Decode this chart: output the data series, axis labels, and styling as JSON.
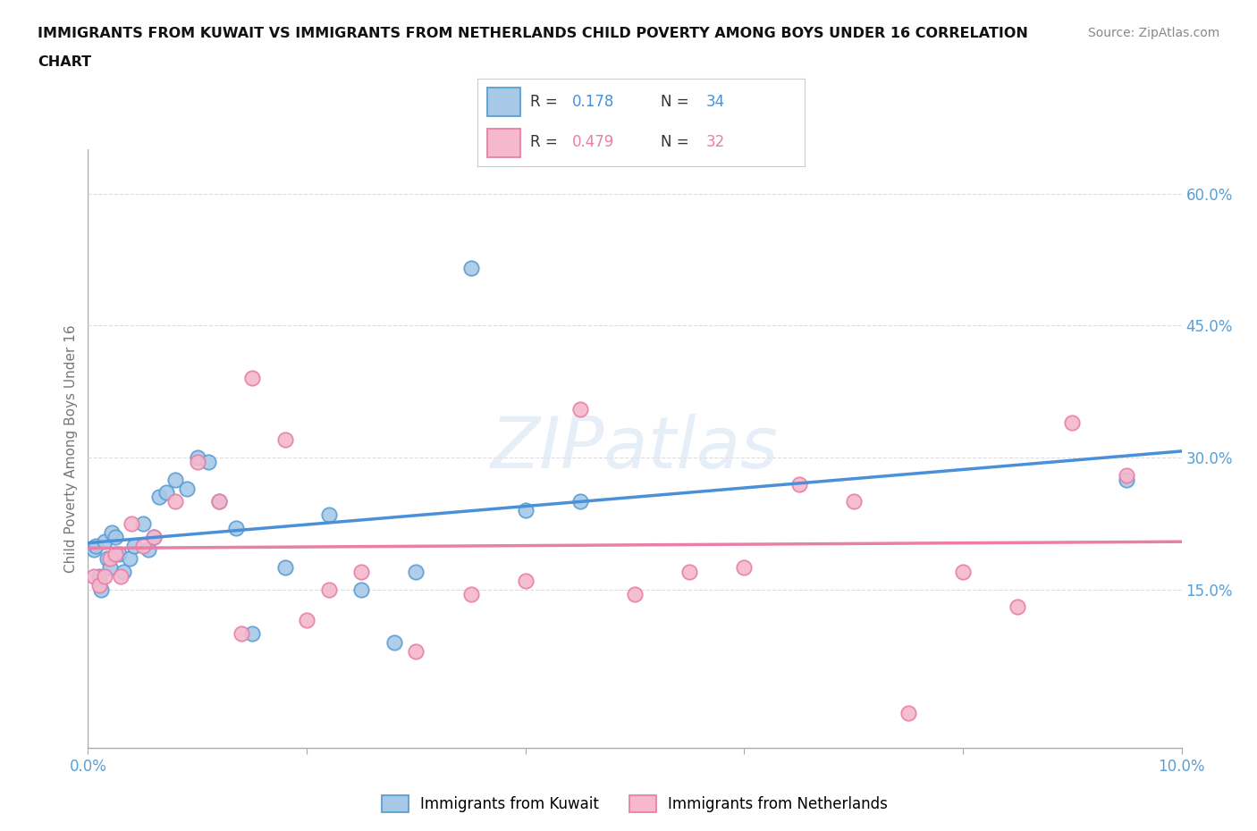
{
  "title_line1": "IMMIGRANTS FROM KUWAIT VS IMMIGRANTS FROM NETHERLANDS CHILD POVERTY AMONG BOYS UNDER 16 CORRELATION",
  "title_line2": "CHART",
  "source": "Source: ZipAtlas.com",
  "ylabel": "Child Poverty Among Boys Under 16",
  "xlim": [
    0.0,
    10.0
  ],
  "ylim": [
    -3.0,
    65.0
  ],
  "xticks": [
    0.0,
    2.0,
    4.0,
    6.0,
    8.0,
    10.0
  ],
  "xtick_labels": [
    "0.0%",
    "",
    "",
    "",
    "",
    "10.0%"
  ],
  "ytick_positions": [
    15.0,
    30.0,
    45.0,
    60.0
  ],
  "ytick_labels": [
    "15.0%",
    "30.0%",
    "45.0%",
    "60.0%"
  ],
  "kuwait_color": "#a8c8e8",
  "kuwait_edge": "#5a9fd4",
  "netherlands_color": "#f5b8cc",
  "netherlands_edge": "#e87fa8",
  "trend_blue": "#4a90d9",
  "trend_pink": "#e87fa8",
  "axis_color": "#5a9fd4",
  "background": "#ffffff",
  "watermark": "ZIPatlas",
  "legend_r1": "0.178",
  "legend_n1": "34",
  "legend_r2": "0.479",
  "legend_n2": "32",
  "kuwait_x": [
    0.05,
    0.07,
    0.1,
    0.12,
    0.15,
    0.18,
    0.2,
    0.22,
    0.25,
    0.28,
    0.32,
    0.38,
    0.42,
    0.5,
    0.55,
    0.6,
    0.65,
    0.72,
    0.8,
    0.9,
    1.0,
    1.1,
    1.2,
    1.35,
    1.5,
    1.8,
    2.2,
    2.5,
    2.8,
    3.0,
    3.5,
    4.0,
    4.5,
    9.5
  ],
  "kuwait_y": [
    19.5,
    20.0,
    16.5,
    15.0,
    20.5,
    18.5,
    17.5,
    21.5,
    21.0,
    19.0,
    17.0,
    18.5,
    20.0,
    22.5,
    19.5,
    21.0,
    25.5,
    26.0,
    27.5,
    26.5,
    30.0,
    29.5,
    25.0,
    22.0,
    10.0,
    17.5,
    23.5,
    15.0,
    9.0,
    17.0,
    51.5,
    24.0,
    25.0,
    27.5
  ],
  "netherlands_x": [
    0.05,
    0.1,
    0.15,
    0.2,
    0.25,
    0.3,
    0.4,
    0.5,
    0.6,
    0.8,
    1.0,
    1.2,
    1.4,
    1.5,
    1.8,
    2.0,
    2.2,
    2.5,
    3.0,
    3.5,
    4.0,
    4.5,
    5.0,
    5.5,
    6.0,
    6.5,
    7.0,
    7.5,
    8.0,
    8.5,
    9.0,
    9.5
  ],
  "netherlands_y": [
    16.5,
    15.5,
    16.5,
    18.5,
    19.0,
    16.5,
    22.5,
    20.0,
    21.0,
    25.0,
    29.5,
    25.0,
    10.0,
    39.0,
    32.0,
    11.5,
    15.0,
    17.0,
    8.0,
    14.5,
    16.0,
    35.5,
    14.5,
    17.0,
    17.5,
    27.0,
    25.0,
    1.0,
    17.0,
    13.0,
    34.0,
    28.0
  ]
}
